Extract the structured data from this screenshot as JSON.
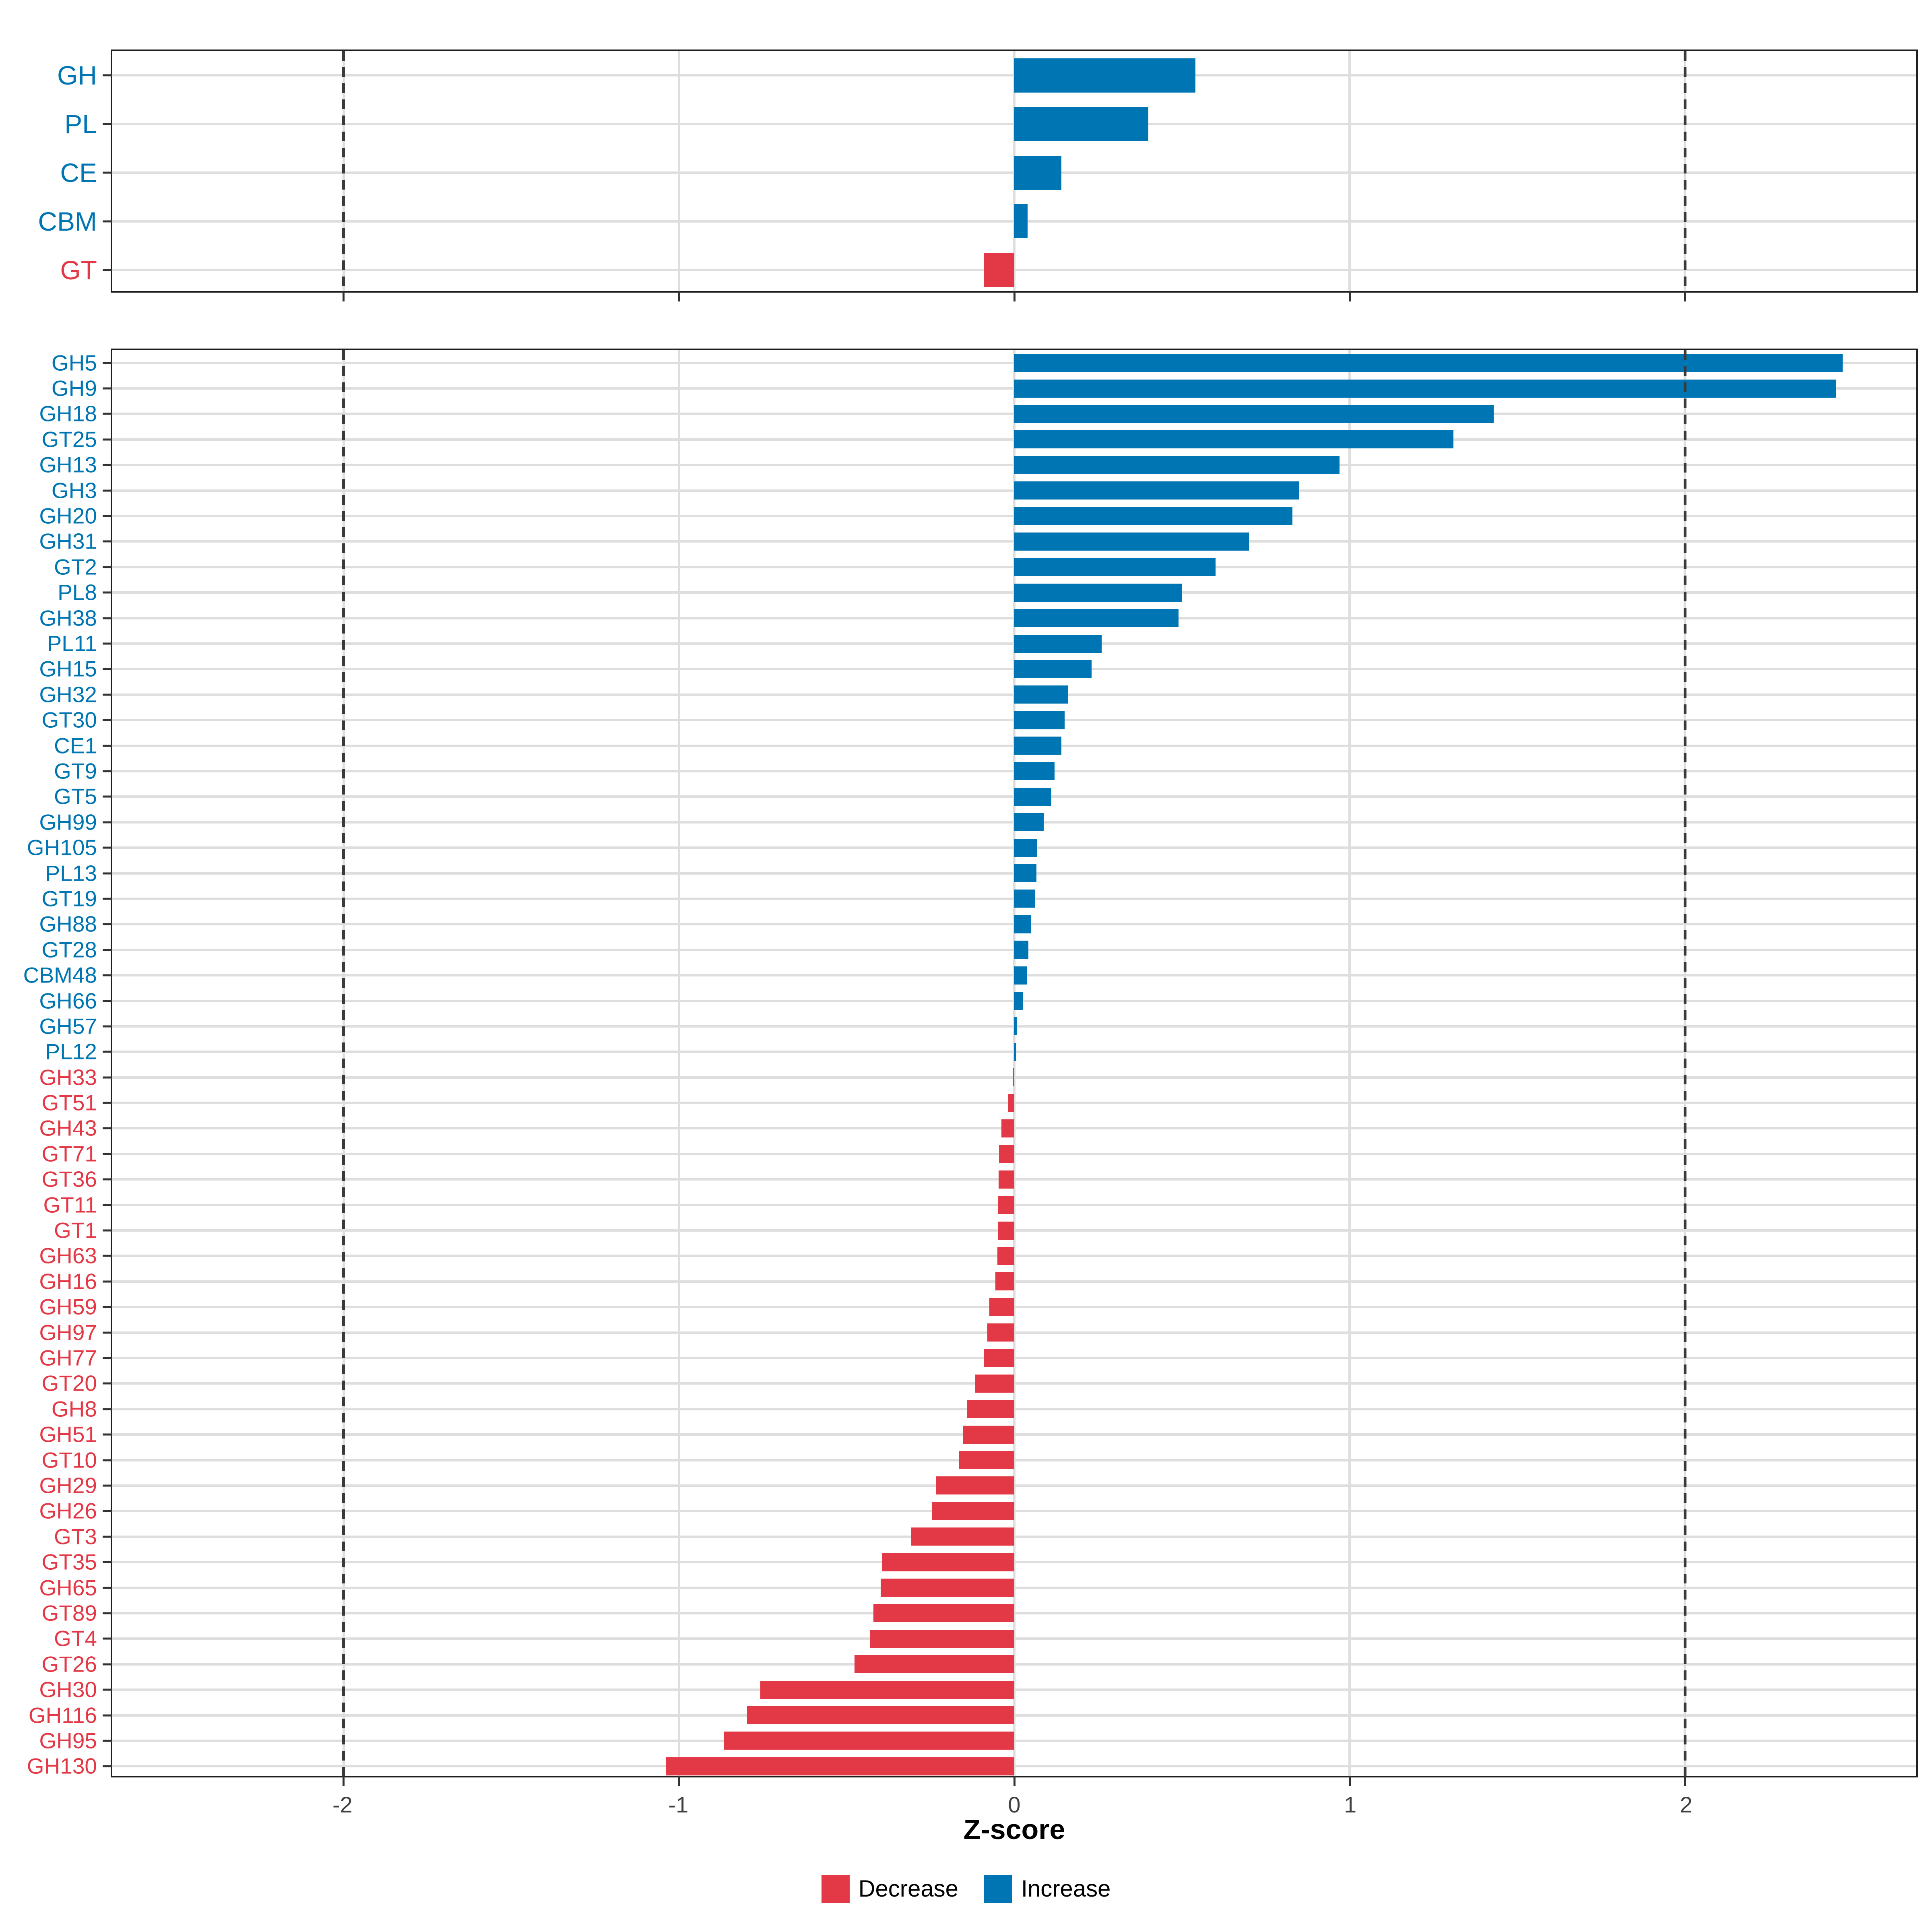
{
  "axis": {
    "label": "Z-score",
    "ticks": [
      "-2",
      "-1",
      "0",
      "1",
      "2"
    ],
    "tick_values": [
      -2,
      -1,
      0,
      1,
      2
    ],
    "xlim": [
      -2.69,
      2.69
    ],
    "dashed_vlines": [
      -2,
      2
    ]
  },
  "colors": {
    "increase": "#0075B3",
    "decrease": "#E33845",
    "grid": "#DEDEDE",
    "dash": "#3A3A3A",
    "tick_text": "#404040"
  },
  "legend": {
    "items": [
      {
        "label": "Decrease",
        "color": "#E33845"
      },
      {
        "label": "Increase",
        "color": "#0075B3"
      }
    ]
  },
  "chart_data": [
    {
      "type": "bar",
      "orientation": "horizontal",
      "panel": "cazyme-class",
      "xlabel": "Z-score",
      "xlim": [
        -2.69,
        2.69
      ],
      "grid": true,
      "categories": [
        "GH",
        "PL",
        "CE",
        "CBM",
        "GT"
      ],
      "values": [
        0.54,
        0.4,
        0.14,
        0.04,
        -0.09
      ]
    },
    {
      "type": "bar",
      "orientation": "horizontal",
      "panel": "cazyme-family",
      "xlabel": "Z-score",
      "xlim": [
        -2.69,
        2.69
      ],
      "grid": true,
      "categories": [
        "GH5",
        "GH9",
        "GH18",
        "GT25",
        "GH13",
        "GH3",
        "GH20",
        "GH31",
        "GT2",
        "PL8",
        "GH38",
        "PL11",
        "GH15",
        "GH32",
        "GT30",
        "CE1",
        "GT9",
        "GT5",
        "GH99",
        "GH105",
        "PL13",
        "GT19",
        "GH88",
        "GT28",
        "CBM48",
        "GH66",
        "GH57",
        "PL12",
        "GH33",
        "GT51",
        "GH43",
        "GT71",
        "GT36",
        "GT11",
        "GT1",
        "GH63",
        "GH16",
        "GH59",
        "GH97",
        "GH77",
        "GT20",
        "GH8",
        "GH51",
        "GT10",
        "GH29",
        "GH26",
        "GT3",
        "GT35",
        "GH65",
        "GT89",
        "GT4",
        "GT26",
        "GH30",
        "GH116",
        "GH95",
        "GH130"
      ],
      "values": [
        2.47,
        2.45,
        1.43,
        1.31,
        0.97,
        0.85,
        0.83,
        0.7,
        0.6,
        0.5,
        0.49,
        0.26,
        0.23,
        0.16,
        0.15,
        0.14,
        0.12,
        0.11,
        0.088,
        0.068,
        0.066,
        0.063,
        0.051,
        0.042,
        0.039,
        0.025,
        0.009,
        0.006,
        -0.005,
        -0.018,
        -0.038,
        -0.046,
        -0.047,
        -0.048,
        -0.049,
        -0.05,
        -0.057,
        -0.074,
        -0.081,
        -0.09,
        -0.118,
        -0.14,
        -0.152,
        -0.166,
        -0.234,
        -0.246,
        -0.307,
        -0.395,
        -0.398,
        -0.42,
        -0.431,
        -0.476,
        -0.757,
        -0.797,
        -0.865,
        -1.04
      ]
    }
  ]
}
